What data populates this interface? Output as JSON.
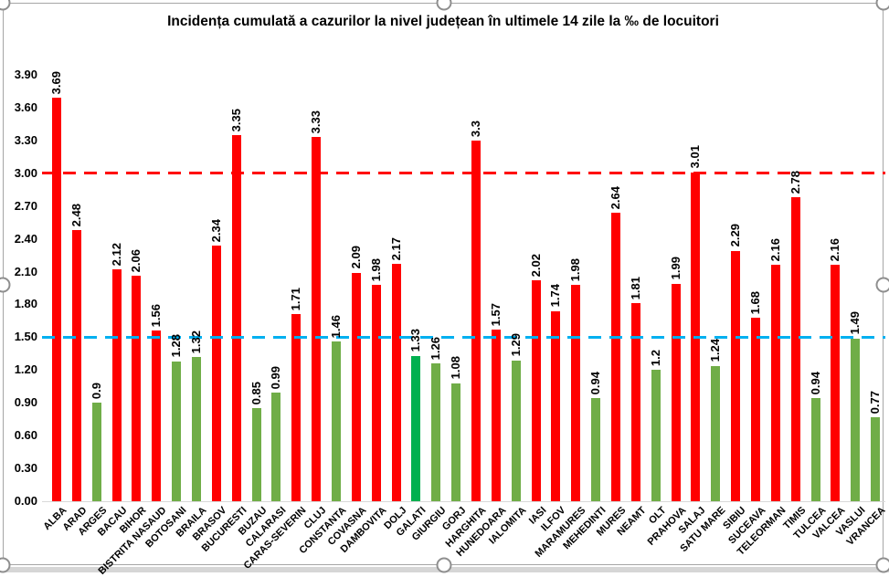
{
  "chart_data": {
    "type": "bar",
    "title": "Incidența cumulată a cazurilor la nivel județean în ultimele 14 zile la ‰ de locuitori",
    "xlabel": "",
    "ylabel": "",
    "ylim": [
      0,
      3.9
    ],
    "ytick_step": 0.3,
    "ytick_labels": [
      "0.00",
      "0.30",
      "0.60",
      "0.90",
      "1.20",
      "1.50",
      "1.80",
      "2.10",
      "2.40",
      "2.70",
      "3.00",
      "3.30",
      "3.60",
      "3.90"
    ],
    "grid": false,
    "legend": false,
    "categories": [
      "ALBA",
      "ARAD",
      "ARGES",
      "BACAU",
      "BIHOR",
      "BISTRITA NASAUD",
      "BOTOSANI",
      "BRAILA",
      "BRASOV",
      "BUCURESTI",
      "BUZAU",
      "CALARASI",
      "CARAS-SEVERIN",
      "CLUJ",
      "CONSTANTA",
      "COVASNA",
      "DAMBOVITA",
      "DOLJ",
      "GALATI",
      "GIURGIU",
      "GORJ",
      "HARGHITA",
      "HUNEDOARA",
      "IALOMITA",
      "IASI",
      "ILFOV",
      "MARAMURES",
      "MEHEDINTI",
      "MURES",
      "NEAMT",
      "OLT",
      "PRAHOVA",
      "SALAJ",
      "SATU MARE",
      "SIBIU",
      "SUCEAVA",
      "TELEORMAN",
      "TIMIS",
      "TULCEA",
      "VALCEA",
      "VASLUI",
      "VRANCEA"
    ],
    "values": [
      3.69,
      2.48,
      0.9,
      2.12,
      2.06,
      1.56,
      1.28,
      1.32,
      2.34,
      3.35,
      0.85,
      0.99,
      1.71,
      3.33,
      1.46,
      2.09,
      1.98,
      2.17,
      1.33,
      1.26,
      1.08,
      3.3,
      1.57,
      1.29,
      2.02,
      1.74,
      1.98,
      0.94,
      2.64,
      1.81,
      1.2,
      1.99,
      3.01,
      1.24,
      2.29,
      1.68,
      2.16,
      2.78,
      0.94,
      2.16,
      1.49,
      0.77
    ],
    "value_labels": [
      "3.69",
      "2.48",
      "0.9",
      "2.12",
      "2.06",
      "1.56",
      "1.28",
      "1.32",
      "2.34",
      "3.35",
      "0.85",
      "0.99",
      "1.71",
      "3.33",
      "1.46",
      "2.09",
      "1.98",
      "2.17",
      "1.33",
      "1.26",
      "1.08",
      "3.3",
      "1.57",
      "1.29",
      "2.02",
      "1.74",
      "1.98",
      "0.94",
      "2.64",
      "1.81",
      "1.2",
      "1.99",
      "3.01",
      "1.24",
      "2.29",
      "1.68",
      "2.16",
      "2.78",
      "0.94",
      "2.16",
      "1.49",
      "0.77"
    ],
    "bar_colors": [
      "#FF0000",
      "#FF0000",
      "#70AD47",
      "#FF0000",
      "#FF0000",
      "#FF0000",
      "#70AD47",
      "#70AD47",
      "#FF0000",
      "#FF0000",
      "#70AD47",
      "#70AD47",
      "#FF0000",
      "#FF0000",
      "#70AD47",
      "#FF0000",
      "#FF0000",
      "#FF0000",
      "#00B050",
      "#70AD47",
      "#70AD47",
      "#FF0000",
      "#FF0000",
      "#70AD47",
      "#FF0000",
      "#FF0000",
      "#FF0000",
      "#70AD47",
      "#FF0000",
      "#FF0000",
      "#70AD47",
      "#FF0000",
      "#FF0000",
      "#70AD47",
      "#FF0000",
      "#FF0000",
      "#FF0000",
      "#FF0000",
      "#70AD47",
      "#FF0000",
      "#70AD47",
      "#70AD47"
    ],
    "color_legend": {
      "above_threshold_bar": "#FF0000",
      "below_threshold_bar": "#70AD47",
      "highlighted_bar_galati": "#00B050"
    },
    "thresholds": [
      {
        "value": 3.0,
        "color": "#FF0000",
        "style": "dashed"
      },
      {
        "value": 1.5,
        "color": "#00B0F0",
        "style": "dashed"
      }
    ]
  }
}
